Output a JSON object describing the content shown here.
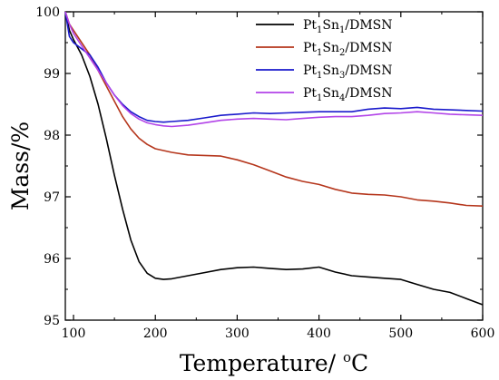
{
  "chart_data": {
    "type": "line",
    "xlabel": {
      "main": "Temperature/ ",
      "sup": "o",
      "unit": "C"
    },
    "ylabel": "Mass/%",
    "xlim": [
      90,
      600
    ],
    "ylim": [
      95,
      100
    ],
    "xticks": [
      100,
      200,
      300,
      400,
      500,
      600
    ],
    "yticks": [
      95,
      96,
      97,
      98,
      99,
      100
    ],
    "legend_position": "top-right",
    "grid": false,
    "series": [
      {
        "name": {
          "p1": "Pt",
          "s1": "1",
          "p2": "Sn",
          "s2": "1",
          "p3": "/DMSN"
        },
        "color": "#000000",
        "x": [
          90,
          95,
          100,
          110,
          120,
          130,
          140,
          150,
          160,
          170,
          180,
          190,
          200,
          210,
          220,
          240,
          260,
          280,
          300,
          320,
          340,
          360,
          380,
          400,
          420,
          440,
          460,
          480,
          500,
          520,
          540,
          560,
          580,
          600
        ],
        "y": [
          100.0,
          99.7,
          99.55,
          99.3,
          98.95,
          98.5,
          97.95,
          97.35,
          96.8,
          96.3,
          95.95,
          95.76,
          95.68,
          95.66,
          95.67,
          95.72,
          95.77,
          95.82,
          95.85,
          95.86,
          95.84,
          95.82,
          95.83,
          95.86,
          95.78,
          95.72,
          95.7,
          95.68,
          95.66,
          95.58,
          95.5,
          95.45,
          95.35,
          95.25
        ]
      },
      {
        "name": {
          "p1": "Pt",
          "s1": "1",
          "p2": "Sn",
          "s2": "2",
          "p3": "/DMSN"
        },
        "color": "#b5361c",
        "x": [
          90,
          95,
          100,
          110,
          120,
          130,
          140,
          150,
          160,
          170,
          180,
          190,
          200,
          220,
          240,
          260,
          280,
          300,
          320,
          340,
          360,
          380,
          400,
          420,
          440,
          460,
          480,
          500,
          520,
          540,
          560,
          580,
          600
        ],
        "y": [
          100.0,
          99.8,
          99.7,
          99.5,
          99.3,
          99.05,
          98.8,
          98.55,
          98.3,
          98.1,
          97.95,
          97.85,
          97.78,
          97.72,
          97.68,
          97.67,
          97.66,
          97.6,
          97.52,
          97.42,
          97.32,
          97.25,
          97.2,
          97.12,
          97.06,
          97.04,
          97.03,
          97.0,
          96.95,
          96.93,
          96.9,
          96.86,
          96.85
        ]
      },
      {
        "name": {
          "p1": "Pt",
          "s1": "1",
          "p2": "Sn",
          "s2": "3",
          "p3": "/DMSN"
        },
        "color": "#1a1acc",
        "x": [
          90,
          95,
          100,
          110,
          120,
          130,
          140,
          150,
          160,
          170,
          180,
          190,
          200,
          210,
          220,
          240,
          260,
          280,
          300,
          320,
          340,
          360,
          380,
          400,
          420,
          440,
          460,
          480,
          500,
          520,
          540,
          560,
          580,
          600
        ],
        "y": [
          100.0,
          99.6,
          99.5,
          99.4,
          99.3,
          99.1,
          98.85,
          98.65,
          98.5,
          98.38,
          98.3,
          98.24,
          98.22,
          98.21,
          98.22,
          98.24,
          98.28,
          98.32,
          98.34,
          98.36,
          98.35,
          98.36,
          98.37,
          98.38,
          98.38,
          98.38,
          98.42,
          98.44,
          98.43,
          98.45,
          98.42,
          98.41,
          98.4,
          98.39
        ]
      },
      {
        "name": {
          "p1": "Pt",
          "s1": "1",
          "p2": "Sn",
          "s2": "4",
          "p3": "/DMSN"
        },
        "color": "#b243e8",
        "x": [
          90,
          95,
          100,
          110,
          120,
          130,
          140,
          150,
          160,
          170,
          180,
          190,
          200,
          210,
          220,
          240,
          260,
          280,
          300,
          320,
          340,
          360,
          380,
          400,
          420,
          440,
          460,
          480,
          500,
          520,
          540,
          560,
          580,
          600
        ],
        "y": [
          100.0,
          99.8,
          99.65,
          99.45,
          99.25,
          99.05,
          98.85,
          98.65,
          98.48,
          98.35,
          98.26,
          98.2,
          98.17,
          98.15,
          98.14,
          98.16,
          98.2,
          98.24,
          98.26,
          98.27,
          98.26,
          98.25,
          98.27,
          98.29,
          98.3,
          98.3,
          98.32,
          98.35,
          98.36,
          98.38,
          98.36,
          98.34,
          98.33,
          98.32
        ]
      }
    ]
  }
}
